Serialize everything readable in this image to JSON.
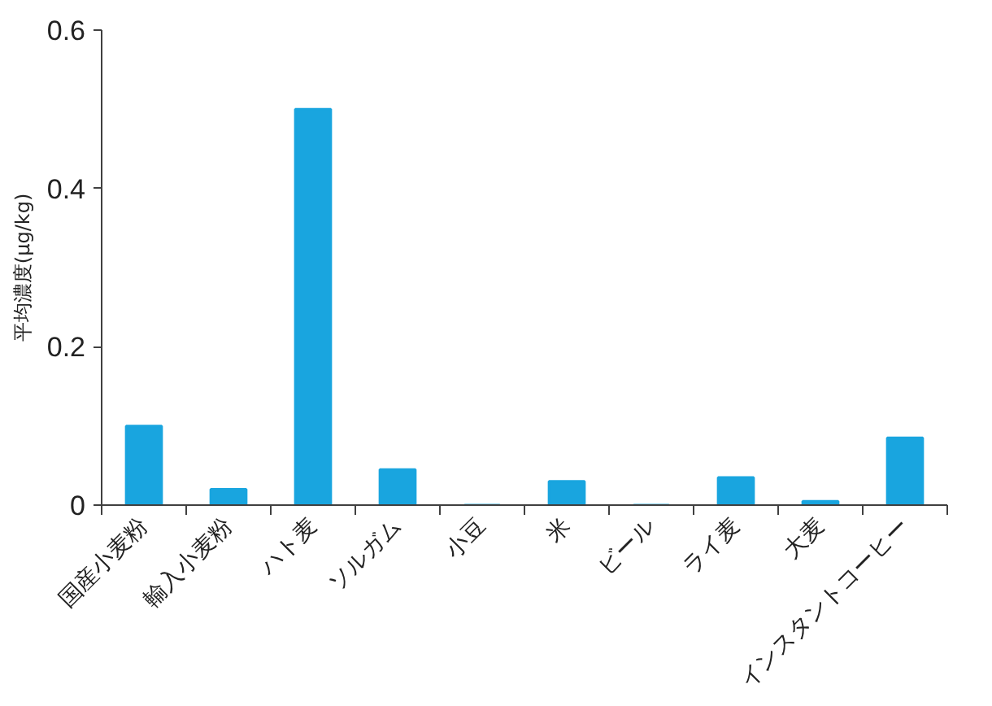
{
  "chart_data": {
    "type": "bar",
    "ylabel": "平均濃度(μg/kg)",
    "categories": [
      "国産小麦粉",
      "輸入小麦粉",
      "ハト麦",
      "ソルガム",
      "小豆",
      "米",
      "ビール",
      "ライ麦",
      "大麦",
      "インスタントコーヒー"
    ],
    "values": [
      0.1,
      0.02,
      0.5,
      0.045,
      0,
      0.03,
      0,
      0.035,
      0.005,
      0.085
    ],
    "color": "#19a5df",
    "ylim": [
      0,
      0.6
    ],
    "yticks": [
      0,
      0.2,
      0.4,
      0.6
    ]
  }
}
